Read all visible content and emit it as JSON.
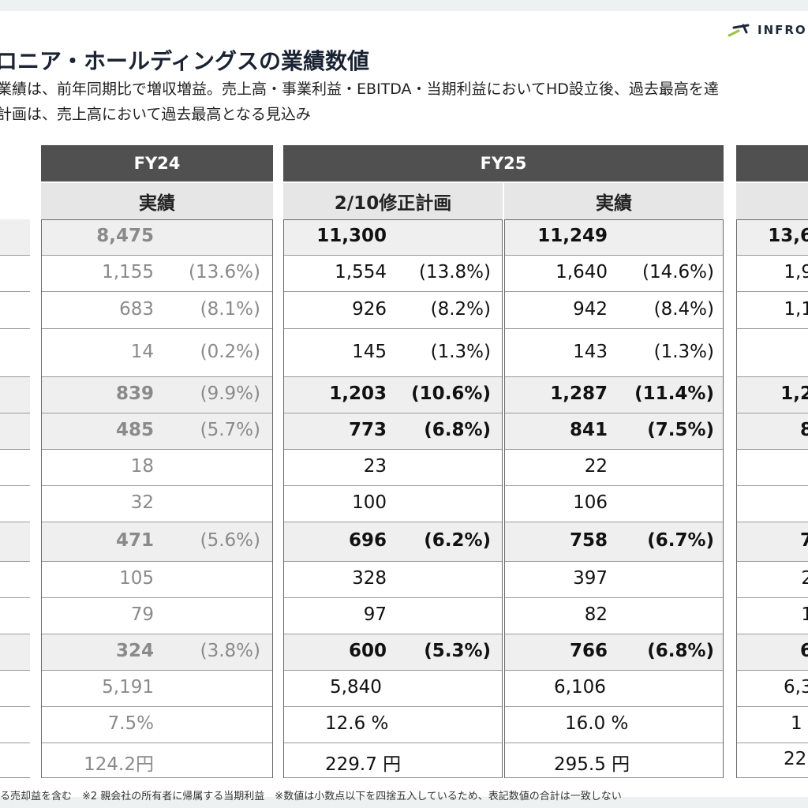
{
  "header": {
    "title": "ロニア・ホールディングスの業績数値",
    "logo_text": "INFRO",
    "bullets": [
      "業績は、前年同期比で増収増益。売上高・事業利益・EBITDA・当期利益においてHD設立後、過去最高を達",
      "計画は、売上高において過去最高となる見込み"
    ]
  },
  "table": {
    "periods": [
      {
        "label": "FY24"
      },
      {
        "label": "FY25"
      }
    ],
    "columns": [
      {
        "key": "fy24_actual",
        "label": "実績",
        "style": "gray",
        "cells": [
          {
            "v": "8,475",
            "p": ""
          },
          {
            "v": "1,155",
            "p": "(13.6%)"
          },
          {
            "v": "683",
            "p": "(8.1%)"
          },
          {
            "v": "14",
            "p": "(0.2%)"
          },
          {
            "v": "839",
            "p": "(9.9%)"
          },
          {
            "v": "485",
            "p": "(5.7%)"
          },
          {
            "v": "18",
            "p": ""
          },
          {
            "v": "32",
            "p": ""
          },
          {
            "v": "471",
            "p": "(5.6%)"
          },
          {
            "v": "105",
            "p": ""
          },
          {
            "v": "79",
            "p": ""
          },
          {
            "v": "324",
            "p": "(3.8%)"
          },
          {
            "v": "5,191",
            "p": ""
          },
          {
            "v": "7.5%",
            "p": ""
          },
          {
            "v": "124.2円",
            "p": ""
          }
        ]
      },
      {
        "key": "fy25_plan",
        "label": "2/10修正計画",
        "style": "black",
        "cells": [
          {
            "v": "11,300",
            "p": ""
          },
          {
            "v": "1,554",
            "p": "(13.8%)"
          },
          {
            "v": "926",
            "p": "(8.2%)"
          },
          {
            "v": "145",
            "p": "(1.3%)"
          },
          {
            "v": "1,203",
            "p": "(10.6%)"
          },
          {
            "v": "773",
            "p": "(6.8%)"
          },
          {
            "v": "23",
            "p": ""
          },
          {
            "v": "100",
            "p": ""
          },
          {
            "v": "696",
            "p": "(6.2%)"
          },
          {
            "v": "328",
            "p": ""
          },
          {
            "v": "97",
            "p": ""
          },
          {
            "v": "600",
            "p": "(5.3%)"
          },
          {
            "v": "5,840",
            "p": ""
          },
          {
            "v": "12.6 %",
            "p": ""
          },
          {
            "v": "229.7 円",
            "p": ""
          }
        ]
      },
      {
        "key": "fy25_actual",
        "label": "実績",
        "style": "black",
        "cells": [
          {
            "v": "11,249",
            "p": ""
          },
          {
            "v": "1,640",
            "p": "(14.6%)"
          },
          {
            "v": "942",
            "p": "(8.4%)"
          },
          {
            "v": "143",
            "p": "(1.3%)"
          },
          {
            "v": "1,287",
            "p": "(11.4%)"
          },
          {
            "v": "841",
            "p": "(7.5%)"
          },
          {
            "v": "22",
            "p": ""
          },
          {
            "v": "106",
            "p": ""
          },
          {
            "v": "758",
            "p": "(6.7%)"
          },
          {
            "v": "397",
            "p": ""
          },
          {
            "v": "82",
            "p": ""
          },
          {
            "v": "766",
            "p": "(6.8%)"
          },
          {
            "v": "6,106",
            "p": ""
          },
          {
            "v": "16.0 %",
            "p": ""
          },
          {
            "v": "295.5 円",
            "p": ""
          }
        ]
      },
      {
        "key": "fy26_plan",
        "label": "",
        "style": "black",
        "cells": [
          {
            "v": "13,6",
            "p": ""
          },
          {
            "v": "1,9",
            "p": ""
          },
          {
            "v": "1,1",
            "p": ""
          },
          {
            "v": "",
            "p": ""
          },
          {
            "v": "1,2",
            "p": ""
          },
          {
            "v": "8",
            "p": ""
          },
          {
            "v": "",
            "p": ""
          },
          {
            "v": "",
            "p": ""
          },
          {
            "v": "7",
            "p": ""
          },
          {
            "v": "2",
            "p": ""
          },
          {
            "v": "1",
            "p": ""
          },
          {
            "v": "6",
            "p": ""
          },
          {
            "v": "6,3",
            "p": ""
          },
          {
            "v": "1",
            "p": ""
          },
          {
            "v": "22",
            "p": ""
          }
        ]
      }
    ],
    "bold_rows": [
      0,
      4,
      5,
      8,
      11
    ]
  },
  "footnote": "る売却益を含む　※2 親会社の所有者に帰属する当期利益　※数値は小数点以下を四捨五入しているため、表記数値の合計は一致しない"
}
